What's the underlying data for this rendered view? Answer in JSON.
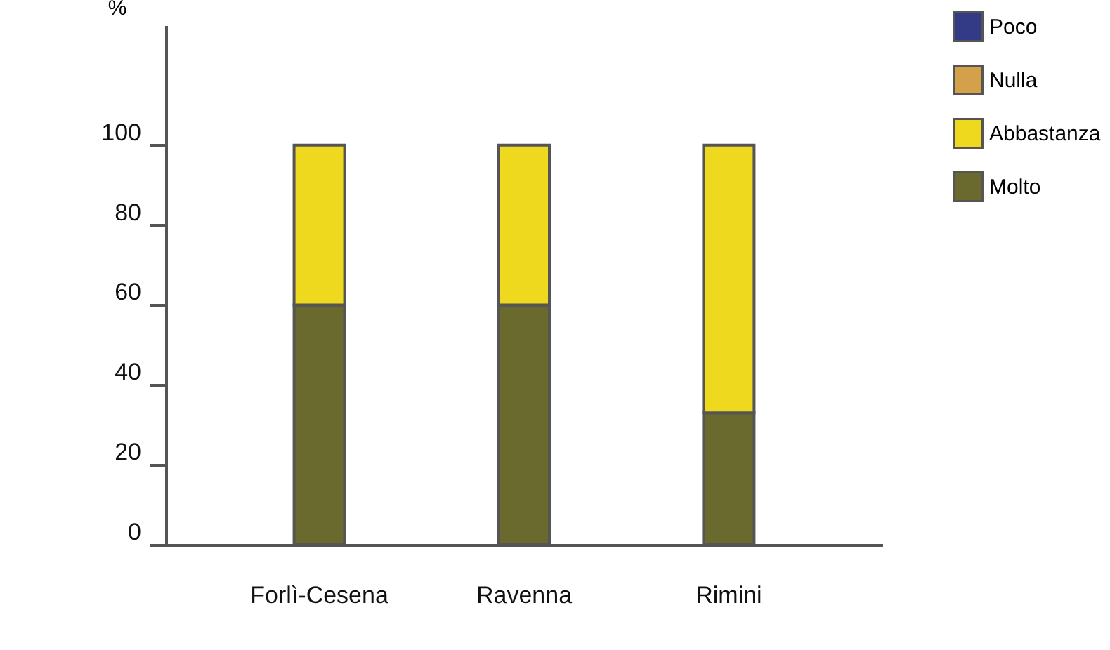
{
  "chart_data": {
    "type": "bar",
    "stacked": true,
    "ylabel": "%",
    "categories": [
      "Forlì-Cesena",
      "Ravenna",
      "Rimini"
    ],
    "series": [
      {
        "name": "Molto",
        "color": "#6b6a2e",
        "values": [
          60,
          60,
          33
        ]
      },
      {
        "name": "Abbastanza",
        "color": "#eed91f",
        "values": [
          40,
          40,
          67
        ]
      },
      {
        "name": "Nulla",
        "color": "#d4a04a",
        "values": [
          0,
          0,
          0
        ]
      },
      {
        "name": "Poco",
        "color": "#343b86",
        "values": [
          0,
          0,
          0
        ]
      }
    ],
    "ylim": [
      0,
      130
    ],
    "yticks": [
      0,
      20,
      40,
      60,
      80,
      100
    ],
    "grid": false,
    "legend": "top right"
  }
}
